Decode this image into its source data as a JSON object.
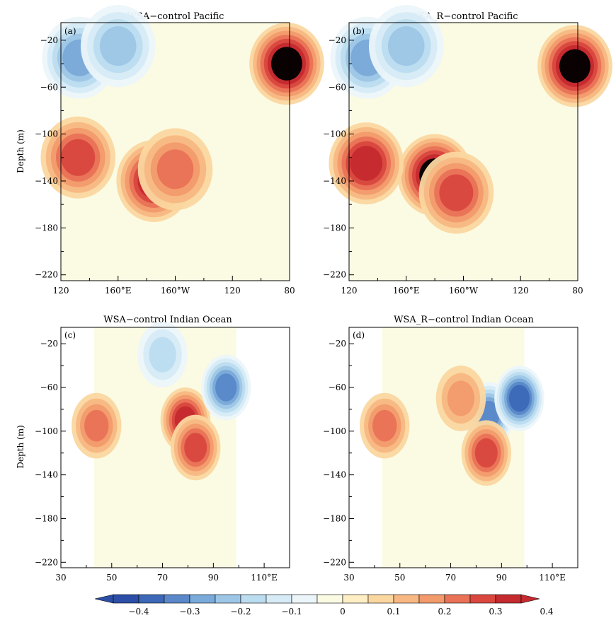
{
  "chart_data": [
    {
      "type": "heatmap",
      "panel": "(a)",
      "title": "WSA−control Pacific",
      "ylabel": "Depth (m)",
      "xlabel": "",
      "y_ticks": [
        "−20",
        "−60",
        "−100",
        "−140",
        "−180",
        "−220"
      ],
      "y_tick_values": [
        -20,
        -60,
        -100,
        -140,
        -180,
        -220
      ],
      "ylim": [
        -225,
        -5
      ],
      "x_tick_labels": [
        "120",
        "160°E",
        "160°W",
        "120",
        "80"
      ],
      "x_tick_values": [
        120,
        160,
        200,
        240,
        280
      ],
      "xlim": [
        120,
        280
      ],
      "features": [
        {
          "x": 185,
          "y": -140,
          "value": 0.3
        },
        {
          "x": 200,
          "y": -130,
          "value": 0.2
        },
        {
          "x": 132,
          "y": -120,
          "value": 0.25
        },
        {
          "x": 133,
          "y": -35,
          "value": -0.25
        },
        {
          "x": 160,
          "y": -25,
          "value": -0.2
        },
        {
          "x": 278,
          "y": -40,
          "value": 0.35
        }
      ]
    },
    {
      "type": "heatmap",
      "panel": "(b)",
      "title": "WSA_R−control Pacific",
      "ylabel": "",
      "xlabel": "",
      "y_ticks": [
        "−20",
        "−60",
        "−100",
        "−140",
        "−180",
        "−220"
      ],
      "y_tick_values": [
        -20,
        -60,
        -100,
        -140,
        -180,
        -220
      ],
      "ylim": [
        -225,
        -5
      ],
      "x_tick_labels": [
        "120",
        "160°E",
        "160°W",
        "120",
        "80"
      ],
      "x_tick_values": [
        120,
        160,
        200,
        240,
        280
      ],
      "xlim": [
        120,
        280
      ],
      "features": [
        {
          "x": 180,
          "y": -135,
          "value": 0.35
        },
        {
          "x": 195,
          "y": -150,
          "value": 0.25
        },
        {
          "x": 132,
          "y": -125,
          "value": 0.3
        },
        {
          "x": 133,
          "y": -35,
          "value": -0.25
        },
        {
          "x": 160,
          "y": -25,
          "value": -0.2
        },
        {
          "x": 278,
          "y": -42,
          "value": 0.35
        }
      ]
    },
    {
      "type": "heatmap",
      "panel": "(c)",
      "title": "WSA−control Indian Ocean",
      "ylabel": "Depth (m)",
      "xlabel": "",
      "y_ticks": [
        "−20",
        "−60",
        "−100",
        "−140",
        "−180",
        "−220"
      ],
      "y_tick_values": [
        -20,
        -60,
        -100,
        -140,
        -180,
        -220
      ],
      "ylim": [
        -225,
        -5
      ],
      "x_tick_labels": [
        "30",
        "50",
        "70",
        "90",
        "110°E"
      ],
      "x_tick_values": [
        30,
        50,
        70,
        90,
        110
      ],
      "xlim": [
        30,
        120
      ],
      "features": [
        {
          "x": 79,
          "y": -90,
          "value": 0.3
        },
        {
          "x": 83,
          "y": -115,
          "value": 0.25
        },
        {
          "x": 95,
          "y": -60,
          "value": -0.3
        },
        {
          "x": 70,
          "y": -30,
          "value": -0.15
        },
        {
          "x": 44,
          "y": -95,
          "value": 0.2
        }
      ]
    },
    {
      "type": "heatmap",
      "panel": "(d)",
      "title": "WSA_R−control Indian Ocean",
      "ylabel": "",
      "xlabel": "",
      "y_ticks": [
        "−20",
        "−60",
        "−100",
        "−140",
        "−180",
        "−220"
      ],
      "y_tick_values": [
        -20,
        -60,
        -100,
        -140,
        -180,
        -220
      ],
      "ylim": [
        -225,
        -5
      ],
      "x_tick_labels": [
        "30",
        "50",
        "70",
        "90",
        "110°E"
      ],
      "x_tick_values": [
        30,
        50,
        70,
        90,
        110
      ],
      "xlim": [
        30,
        120
      ],
      "features": [
        {
          "x": 85,
          "y": -85,
          "value": -0.3
        },
        {
          "x": 97,
          "y": -70,
          "value": -0.35
        },
        {
          "x": 84,
          "y": -120,
          "value": 0.25
        },
        {
          "x": 74,
          "y": -70,
          "value": 0.15
        },
        {
          "x": 44,
          "y": -95,
          "value": 0.2
        }
      ]
    }
  ],
  "colorbar": {
    "tick_labels": [
      "−0.4",
      "−0.3",
      "−0.2",
      "−0.1",
      "0",
      "0.1",
      "0.2",
      "0.3",
      "0.4"
    ],
    "levels": [
      -0.45,
      -0.4,
      -0.35,
      -0.3,
      -0.25,
      -0.2,
      -0.15,
      -0.1,
      -0.05,
      0,
      0.05,
      0.1,
      0.15,
      0.2,
      0.25,
      0.3,
      0.35,
      0.4,
      0.45
    ],
    "colors": [
      "#2c4ea6",
      "#3d68b8",
      "#5a88c9",
      "#7aaad9",
      "#9dc6e6",
      "#bcdcef",
      "#d6ebf5",
      "#ecf6fa",
      "#fbfbe3",
      "#fdeec4",
      "#fbd7a0",
      "#f8b883",
      "#f29a6b",
      "#e97257",
      "#d9473f",
      "#c42a2e"
    ],
    "extend": "both"
  }
}
